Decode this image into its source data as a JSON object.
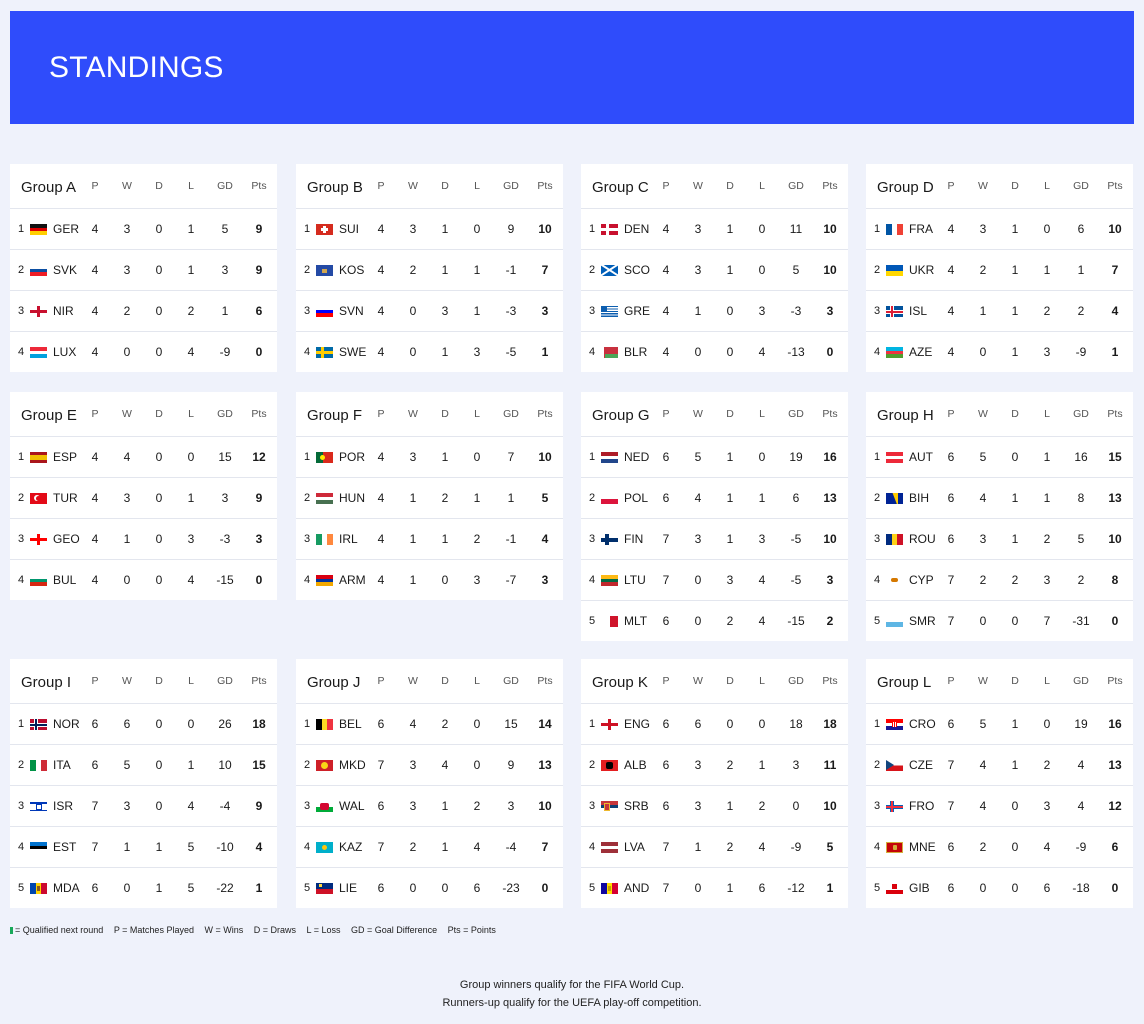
{
  "header": {
    "title": "STANDINGS"
  },
  "columns": [
    "P",
    "W",
    "D",
    "L",
    "GD",
    "Pts"
  ],
  "groups": [
    {
      "name": "Group A",
      "rows": [
        {
          "pos": "1",
          "code": "GER",
          "flag": "de",
          "p": "4",
          "w": "3",
          "d": "0",
          "l": "1",
          "gd": "5",
          "pts": "9"
        },
        {
          "pos": "2",
          "code": "SVK",
          "flag": "sk",
          "p": "4",
          "w": "3",
          "d": "0",
          "l": "1",
          "gd": "3",
          "pts": "9"
        },
        {
          "pos": "3",
          "code": "NIR",
          "flag": "nir",
          "p": "4",
          "w": "2",
          "d": "0",
          "l": "2",
          "gd": "1",
          "pts": "6"
        },
        {
          "pos": "4",
          "code": "LUX",
          "flag": "lu",
          "p": "4",
          "w": "0",
          "d": "0",
          "l": "4",
          "gd": "-9",
          "pts": "0"
        }
      ]
    },
    {
      "name": "Group B",
      "rows": [
        {
          "pos": "1",
          "code": "SUI",
          "flag": "ch",
          "p": "4",
          "w": "3",
          "d": "1",
          "l": "0",
          "gd": "9",
          "pts": "10"
        },
        {
          "pos": "2",
          "code": "KOS",
          "flag": "xk",
          "p": "4",
          "w": "2",
          "d": "1",
          "l": "1",
          "gd": "-1",
          "pts": "7"
        },
        {
          "pos": "3",
          "code": "SVN",
          "flag": "si",
          "p": "4",
          "w": "0",
          "d": "3",
          "l": "1",
          "gd": "-3",
          "pts": "3"
        },
        {
          "pos": "4",
          "code": "SWE",
          "flag": "se",
          "p": "4",
          "w": "0",
          "d": "1",
          "l": "3",
          "gd": "-5",
          "pts": "1"
        }
      ]
    },
    {
      "name": "Group C",
      "rows": [
        {
          "pos": "1",
          "code": "DEN",
          "flag": "dk",
          "p": "4",
          "w": "3",
          "d": "1",
          "l": "0",
          "gd": "11",
          "pts": "10"
        },
        {
          "pos": "2",
          "code": "SCO",
          "flag": "sco",
          "p": "4",
          "w": "3",
          "d": "1",
          "l": "0",
          "gd": "5",
          "pts": "10"
        },
        {
          "pos": "3",
          "code": "GRE",
          "flag": "gr",
          "p": "4",
          "w": "1",
          "d": "0",
          "l": "3",
          "gd": "-3",
          "pts": "3"
        },
        {
          "pos": "4",
          "code": "BLR",
          "flag": "by",
          "p": "4",
          "w": "0",
          "d": "0",
          "l": "4",
          "gd": "-13",
          "pts": "0"
        }
      ]
    },
    {
      "name": "Group D",
      "rows": [
        {
          "pos": "1",
          "code": "FRA",
          "flag": "fr",
          "p": "4",
          "w": "3",
          "d": "1",
          "l": "0",
          "gd": "6",
          "pts": "10"
        },
        {
          "pos": "2",
          "code": "UKR",
          "flag": "ua",
          "p": "4",
          "w": "2",
          "d": "1",
          "l": "1",
          "gd": "1",
          "pts": "7"
        },
        {
          "pos": "3",
          "code": "ISL",
          "flag": "is",
          "p": "4",
          "w": "1",
          "d": "1",
          "l": "2",
          "gd": "2",
          "pts": "4"
        },
        {
          "pos": "4",
          "code": "AZE",
          "flag": "az",
          "p": "4",
          "w": "0",
          "d": "1",
          "l": "3",
          "gd": "-9",
          "pts": "1"
        }
      ]
    },
    {
      "name": "Group E",
      "rows": [
        {
          "pos": "1",
          "code": "ESP",
          "flag": "es",
          "p": "4",
          "w": "4",
          "d": "0",
          "l": "0",
          "gd": "15",
          "pts": "12"
        },
        {
          "pos": "2",
          "code": "TUR",
          "flag": "tr",
          "p": "4",
          "w": "3",
          "d": "0",
          "l": "1",
          "gd": "3",
          "pts": "9"
        },
        {
          "pos": "3",
          "code": "GEO",
          "flag": "ge",
          "p": "4",
          "w": "1",
          "d": "0",
          "l": "3",
          "gd": "-3",
          "pts": "3"
        },
        {
          "pos": "4",
          "code": "BUL",
          "flag": "bg",
          "p": "4",
          "w": "0",
          "d": "0",
          "l": "4",
          "gd": "-15",
          "pts": "0"
        }
      ]
    },
    {
      "name": "Group F",
      "rows": [
        {
          "pos": "1",
          "code": "POR",
          "flag": "pt",
          "p": "4",
          "w": "3",
          "d": "1",
          "l": "0",
          "gd": "7",
          "pts": "10"
        },
        {
          "pos": "2",
          "code": "HUN",
          "flag": "hu",
          "p": "4",
          "w": "1",
          "d": "2",
          "l": "1",
          "gd": "1",
          "pts": "5"
        },
        {
          "pos": "3",
          "code": "IRL",
          "flag": "ie",
          "p": "4",
          "w": "1",
          "d": "1",
          "l": "2",
          "gd": "-1",
          "pts": "4"
        },
        {
          "pos": "4",
          "code": "ARM",
          "flag": "am",
          "p": "4",
          "w": "1",
          "d": "0",
          "l": "3",
          "gd": "-7",
          "pts": "3"
        }
      ]
    },
    {
      "name": "Group G",
      "rows": [
        {
          "pos": "1",
          "code": "NED",
          "flag": "nl",
          "p": "6",
          "w": "5",
          "d": "1",
          "l": "0",
          "gd": "19",
          "pts": "16"
        },
        {
          "pos": "2",
          "code": "POL",
          "flag": "pl",
          "p": "6",
          "w": "4",
          "d": "1",
          "l": "1",
          "gd": "6",
          "pts": "13"
        },
        {
          "pos": "3",
          "code": "FIN",
          "flag": "fi",
          "p": "7",
          "w": "3",
          "d": "1",
          "l": "3",
          "gd": "-5",
          "pts": "10"
        },
        {
          "pos": "4",
          "code": "LTU",
          "flag": "lt",
          "p": "7",
          "w": "0",
          "d": "3",
          "l": "4",
          "gd": "-5",
          "pts": "3"
        },
        {
          "pos": "5",
          "code": "MLT",
          "flag": "mt",
          "p": "6",
          "w": "0",
          "d": "2",
          "l": "4",
          "gd": "-15",
          "pts": "2"
        }
      ]
    },
    {
      "name": "Group H",
      "rows": [
        {
          "pos": "1",
          "code": "AUT",
          "flag": "at",
          "p": "6",
          "w": "5",
          "d": "0",
          "l": "1",
          "gd": "16",
          "pts": "15"
        },
        {
          "pos": "2",
          "code": "BIH",
          "flag": "ba",
          "p": "6",
          "w": "4",
          "d": "1",
          "l": "1",
          "gd": "8",
          "pts": "13"
        },
        {
          "pos": "3",
          "code": "ROU",
          "flag": "ro",
          "p": "6",
          "w": "3",
          "d": "1",
          "l": "2",
          "gd": "5",
          "pts": "10"
        },
        {
          "pos": "4",
          "code": "CYP",
          "flag": "cy",
          "p": "7",
          "w": "2",
          "d": "2",
          "l": "3",
          "gd": "2",
          "pts": "8"
        },
        {
          "pos": "5",
          "code": "SMR",
          "flag": "sm",
          "p": "7",
          "w": "0",
          "d": "0",
          "l": "7",
          "gd": "-31",
          "pts": "0"
        }
      ]
    },
    {
      "name": "Group I",
      "rows": [
        {
          "pos": "1",
          "code": "NOR",
          "flag": "no",
          "p": "6",
          "w": "6",
          "d": "0",
          "l": "0",
          "gd": "26",
          "pts": "18"
        },
        {
          "pos": "2",
          "code": "ITA",
          "flag": "it",
          "p": "6",
          "w": "5",
          "d": "0",
          "l": "1",
          "gd": "10",
          "pts": "15"
        },
        {
          "pos": "3",
          "code": "ISR",
          "flag": "il",
          "p": "7",
          "w": "3",
          "d": "0",
          "l": "4",
          "gd": "-4",
          "pts": "9"
        },
        {
          "pos": "4",
          "code": "EST",
          "flag": "ee",
          "p": "7",
          "w": "1",
          "d": "1",
          "l": "5",
          "gd": "-10",
          "pts": "4"
        },
        {
          "pos": "5",
          "code": "MDA",
          "flag": "md",
          "p": "6",
          "w": "0",
          "d": "1",
          "l": "5",
          "gd": "-22",
          "pts": "1"
        }
      ]
    },
    {
      "name": "Group J",
      "rows": [
        {
          "pos": "1",
          "code": "BEL",
          "flag": "be",
          "p": "6",
          "w": "4",
          "d": "2",
          "l": "0",
          "gd": "15",
          "pts": "14"
        },
        {
          "pos": "2",
          "code": "MKD",
          "flag": "mk",
          "p": "7",
          "w": "3",
          "d": "4",
          "l": "0",
          "gd": "9",
          "pts": "13"
        },
        {
          "pos": "3",
          "code": "WAL",
          "flag": "wal",
          "p": "6",
          "w": "3",
          "d": "1",
          "l": "2",
          "gd": "3",
          "pts": "10"
        },
        {
          "pos": "4",
          "code": "KAZ",
          "flag": "kz",
          "p": "7",
          "w": "2",
          "d": "1",
          "l": "4",
          "gd": "-4",
          "pts": "7"
        },
        {
          "pos": "5",
          "code": "LIE",
          "flag": "li",
          "p": "6",
          "w": "0",
          "d": "0",
          "l": "6",
          "gd": "-23",
          "pts": "0"
        }
      ]
    },
    {
      "name": "Group K",
      "rows": [
        {
          "pos": "1",
          "code": "ENG",
          "flag": "eng",
          "p": "6",
          "w": "6",
          "d": "0",
          "l": "0",
          "gd": "18",
          "pts": "18"
        },
        {
          "pos": "2",
          "code": "ALB",
          "flag": "al",
          "p": "6",
          "w": "3",
          "d": "2",
          "l": "1",
          "gd": "3",
          "pts": "11"
        },
        {
          "pos": "3",
          "code": "SRB",
          "flag": "rs",
          "p": "6",
          "w": "3",
          "d": "1",
          "l": "2",
          "gd": "0",
          "pts": "10"
        },
        {
          "pos": "4",
          "code": "LVA",
          "flag": "lv",
          "p": "7",
          "w": "1",
          "d": "2",
          "l": "4",
          "gd": "-9",
          "pts": "5"
        },
        {
          "pos": "5",
          "code": "AND",
          "flag": "ad",
          "p": "7",
          "w": "0",
          "d": "1",
          "l": "6",
          "gd": "-12",
          "pts": "1"
        }
      ]
    },
    {
      "name": "Group L",
      "rows": [
        {
          "pos": "1",
          "code": "CRO",
          "flag": "hr",
          "p": "6",
          "w": "5",
          "d": "1",
          "l": "0",
          "gd": "19",
          "pts": "16"
        },
        {
          "pos": "2",
          "code": "CZE",
          "flag": "cz",
          "p": "7",
          "w": "4",
          "d": "1",
          "l": "2",
          "gd": "4",
          "pts": "13"
        },
        {
          "pos": "3",
          "code": "FRO",
          "flag": "fo",
          "p": "7",
          "w": "4",
          "d": "0",
          "l": "3",
          "gd": "4",
          "pts": "12"
        },
        {
          "pos": "4",
          "code": "MNE",
          "flag": "me",
          "p": "6",
          "w": "2",
          "d": "0",
          "l": "4",
          "gd": "-9",
          "pts": "6"
        },
        {
          "pos": "5",
          "code": "GIB",
          "flag": "gi",
          "p": "6",
          "w": "0",
          "d": "0",
          "l": "6",
          "gd": "-18",
          "pts": "0"
        }
      ]
    }
  ],
  "legend": {
    "qualified": "= Qualified next round",
    "p": "P = Matches Played",
    "w": "W = Wins",
    "d": "D = Draws",
    "l": "L = Loss",
    "gd": "GD = Goal Difference",
    "pts": "Pts = Points",
    "qualified_color": "#19a95a"
  },
  "footer": {
    "line1": "Group winners qualify for the FIFA World Cup.",
    "line2": "Runners-up qualify for the UEFA play-off competition."
  },
  "colors": {
    "header_bg": "#2f4cfb",
    "page_bg": "#eff2fb"
  }
}
